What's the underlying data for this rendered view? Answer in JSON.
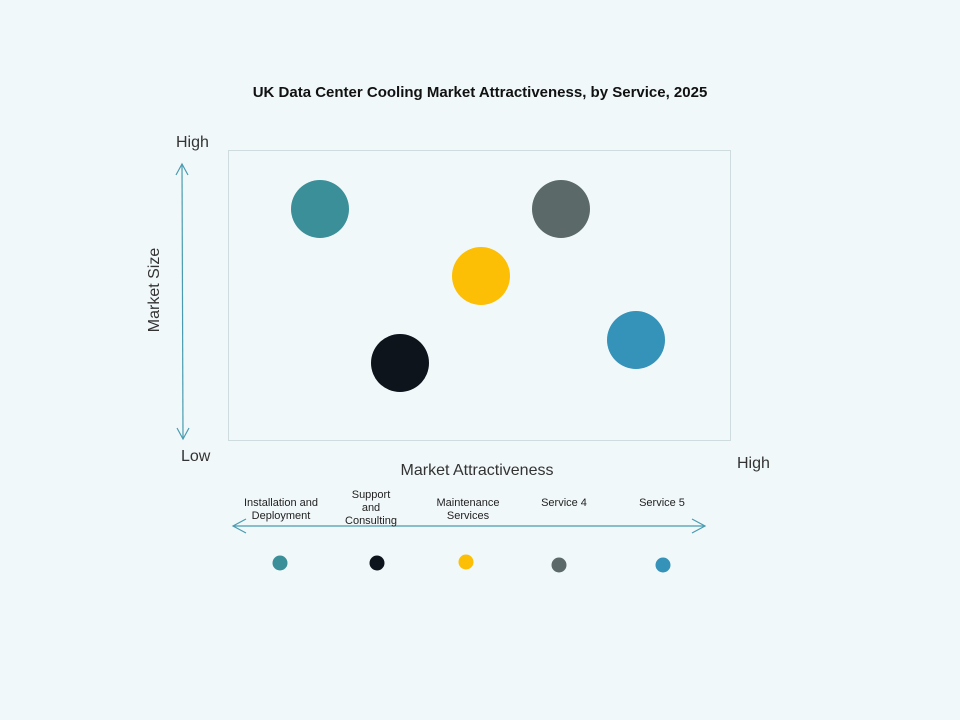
{
  "title": "UK Data Center Cooling Market Attractiveness,  by Service, 2025",
  "y_axis": {
    "title": "Market Size",
    "high_label": "High",
    "low_label": "Low"
  },
  "x_axis": {
    "title": "Market Attractiveness",
    "high_label": "High"
  },
  "legend": {
    "items": [
      {
        "label_lines": [
          "Installation and",
          "Deployment"
        ],
        "color": "#3a8f98"
      },
      {
        "label_lines": [
          "Support",
          "and",
          "Consulting"
        ],
        "color": "#0d141c"
      },
      {
        "label_lines": [
          "Maintenance",
          "Services"
        ],
        "color": "#fdbf05"
      },
      {
        "label_lines": [
          "Service 4"
        ],
        "color": "#5b6969"
      },
      {
        "label_lines": [
          "Service 5"
        ],
        "color": "#3592b8"
      }
    ]
  },
  "chart_data": {
    "type": "scatter",
    "title": "UK Data Center Cooling Market Attractiveness,  by Service, 2025",
    "xlabel": "Market Attractiveness",
    "ylabel": "Market Size",
    "x_range_labels": [
      "Low",
      "High"
    ],
    "y_range_labels": [
      "Low",
      "High"
    ],
    "xlim": [
      0,
      100
    ],
    "ylim": [
      0,
      100
    ],
    "grid": false,
    "legend_position": "bottom",
    "series": [
      {
        "name": "Installation and Deployment",
        "x": 18,
        "y": 80,
        "color": "#3a8f98"
      },
      {
        "name": "Support and Consulting",
        "x": 34,
        "y": 27,
        "color": "#0d141c"
      },
      {
        "name": "Maintenance Services",
        "x": 50,
        "y": 57,
        "color": "#fdbf05"
      },
      {
        "name": "Service 4",
        "x": 66,
        "y": 80,
        "color": "#5b6969"
      },
      {
        "name": "Service 5",
        "x": 81,
        "y": 35,
        "color": "#3592b8"
      }
    ]
  }
}
